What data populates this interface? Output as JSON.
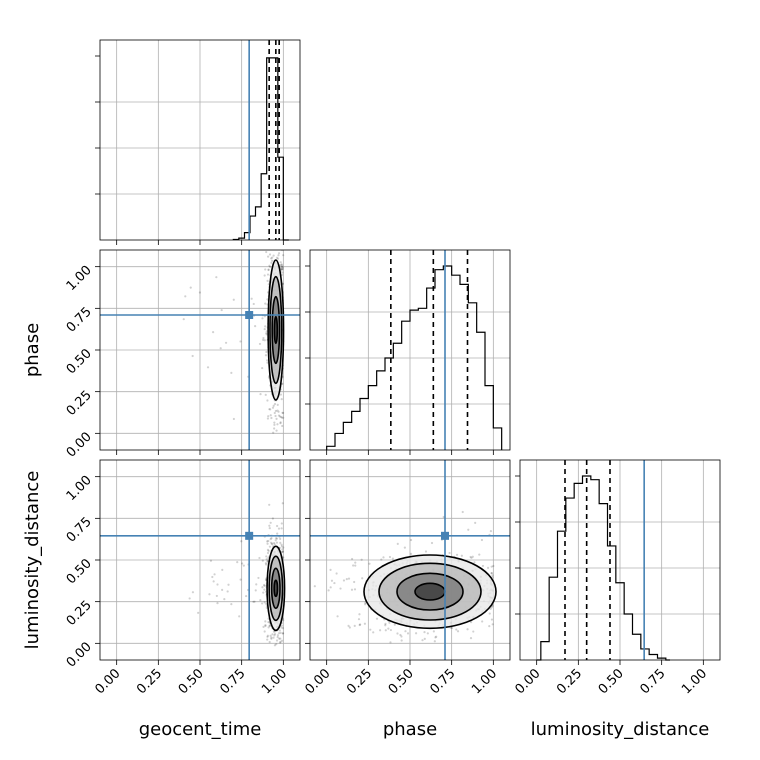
{
  "chart_data": {
    "type": "corner",
    "parameters": [
      {
        "key": "geocent_time",
        "label": "geocent_time",
        "truth": 0.795,
        "quantiles": [
          0.915,
          0.955,
          0.975
        ]
      },
      {
        "key": "phase",
        "label": "phase",
        "truth": 0.71,
        "quantiles": [
          0.385,
          0.64,
          0.845
        ]
      },
      {
        "key": "luminosity_distance",
        "label": "luminosity_distance",
        "truth": 0.645,
        "quantiles": [
          0.17,
          0.3,
          0.44
        ]
      }
    ],
    "axis_range": [
      -0.1,
      1.1
    ],
    "tick_labels": [
      "0.00",
      "0.25",
      "0.50",
      "0.75",
      "1.00"
    ],
    "ticks": [
      0,
      0.25,
      0.5,
      0.75,
      1.0
    ],
    "grid": true,
    "truth_color": "#4682b4",
    "histograms": {
      "geocent_time": {
        "bin_edges": [
          0.7,
          0.733,
          0.767,
          0.8,
          0.833,
          0.867,
          0.9,
          0.933,
          0.967,
          1.0,
          1.033
        ],
        "counts": [
          0.003,
          0.01,
          0.04,
          0.13,
          0.18,
          0.36,
          0.99,
          0.99,
          0.45,
          0.0
        ]
      },
      "phase": {
        "bin_edges": [
          0.0,
          0.05,
          0.1,
          0.15,
          0.2,
          0.25,
          0.3,
          0.35,
          0.4,
          0.45,
          0.5,
          0.55,
          0.6,
          0.65,
          0.7,
          0.75,
          0.8,
          0.85,
          0.9,
          0.95,
          1.0,
          1.05
        ],
        "counts": [
          0.02,
          0.09,
          0.15,
          0.21,
          0.28,
          0.35,
          0.43,
          0.5,
          0.58,
          0.7,
          0.76,
          0.77,
          0.88,
          0.98,
          1.0,
          0.95,
          0.9,
          0.8,
          0.64,
          0.35,
          0.12
        ]
      },
      "luminosity_distance": {
        "bin_edges": [
          0.0,
          0.025,
          0.05,
          0.075,
          0.1,
          0.125,
          0.15,
          0.175,
          0.2,
          0.225,
          0.25,
          0.275,
          0.3,
          0.325,
          0.35,
          0.375,
          0.4,
          0.425,
          0.45,
          0.475,
          0.5,
          0.525,
          0.55,
          0.575,
          0.6,
          0.625,
          0.65,
          0.675,
          0.7,
          0.725,
          0.75,
          0.775,
          0.8
        ],
        "counts": [
          0.0,
          0.1,
          0.1,
          0.45,
          0.45,
          0.7,
          0.7,
          0.88,
          0.88,
          0.96,
          0.96,
          1.0,
          1.0,
          0.98,
          0.98,
          0.85,
          0.85,
          0.62,
          0.62,
          0.42,
          0.42,
          0.25,
          0.25,
          0.14,
          0.14,
          0.06,
          0.06,
          0.03,
          0.03,
          0.01,
          0.01,
          0.0
        ]
      }
    },
    "joint_densities": {
      "phase_vs_geocent_time": {
        "x_param": "geocent_time",
        "y_param": "phase",
        "center": [
          0.955,
          0.62
        ],
        "sigma": [
          0.022,
          0.2
        ],
        "contour_sigmas": [
          0.4,
          1.0,
          1.6,
          2.1
        ]
      },
      "luminosity_distance_vs_geocent_time": {
        "x_param": "geocent_time",
        "y_param": "luminosity_distance",
        "center": [
          0.955,
          0.33
        ],
        "sigma": [
          0.025,
          0.12
        ],
        "contour_sigmas": [
          0.4,
          1.0,
          1.6,
          2.1
        ]
      },
      "luminosity_distance_vs_phase": {
        "x_param": "phase",
        "y_param": "luminosity_distance",
        "center": [
          0.62,
          0.31
        ],
        "sigma": [
          0.18,
          0.1
        ],
        "contour_sigmas": [
          0.5,
          1.1,
          1.7,
          2.2
        ]
      }
    }
  }
}
